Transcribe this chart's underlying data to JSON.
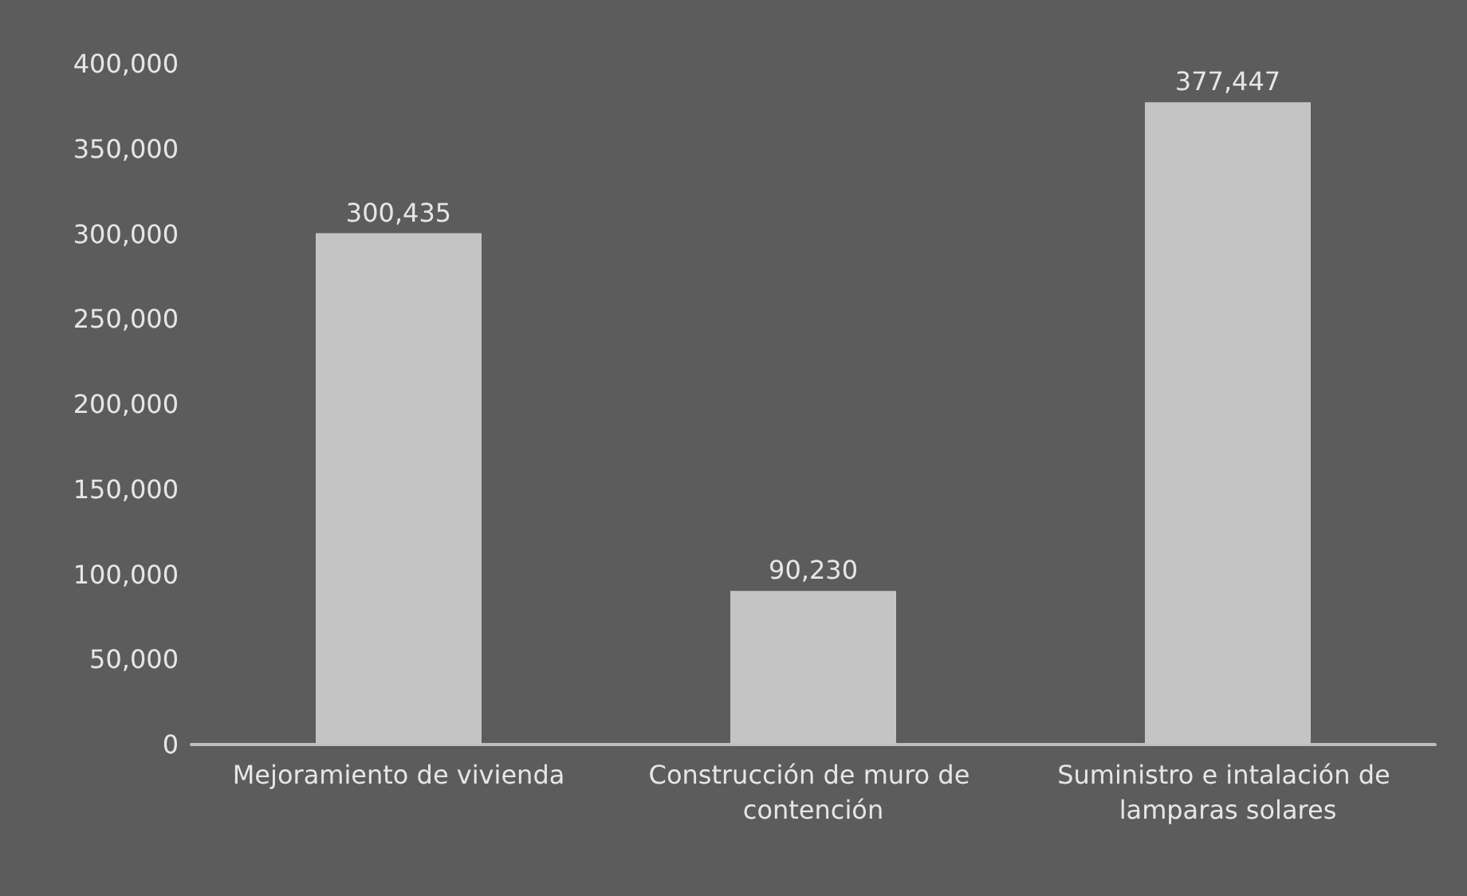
{
  "chart_data": {
    "type": "bar",
    "categories": [
      "Mejoramiento de vivienda",
      "Construcción de muro de contención",
      "Suministro e intalación de lamparas solares"
    ],
    "values": [
      300435,
      90230,
      377447
    ],
    "value_labels": [
      "300,435",
      "90,230",
      "377,447"
    ],
    "color": "#c4c4c4",
    "ylim": [
      0,
      400000
    ],
    "yticks": [
      0,
      {
        "value": 50000,
        "label": "50,000"
      },
      {
        "value": 100000,
        "label": "100,000"
      },
      {
        "value": 150000,
        "label": "150,000"
      },
      {
        "value": 200000,
        "label": "200,000"
      },
      {
        "value": 250000,
        "label": "250,000"
      },
      {
        "value": 300000,
        "label": "300,000"
      },
      {
        "value": 350000,
        "label": "350,000"
      },
      {
        "value": 400000,
        "label": "400,000"
      }
    ],
    "grid": false
  }
}
